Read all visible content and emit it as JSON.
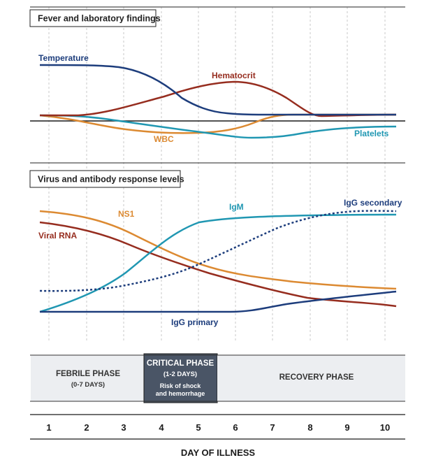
{
  "panels": {
    "fever": {
      "title": "Fever and laboratory findings"
    },
    "virus": {
      "title": "Virus and antibody response levels"
    }
  },
  "series_labels": {
    "temperature": "Temperature",
    "hematocrit": "Hematocrit",
    "wbc": "WBC",
    "platelets": "Platelets",
    "ns1": "NS1",
    "igm": "IgM",
    "igg_secondary": "IgG secondary",
    "viral_rna": "Viral RNA",
    "igg_primary": "IgG primary"
  },
  "phases": {
    "febrile": {
      "title": "FEBRILE PHASE",
      "sub": "(0-7 DAYS)"
    },
    "critical": {
      "title": "CRITICAL PHASE",
      "sub": "(1-2 DAYS)",
      "note1": "Risk of shock",
      "note2": "and hemorrhage"
    },
    "recovery": {
      "title": "RECOVERY PHASE"
    }
  },
  "days": [
    "1",
    "2",
    "3",
    "4",
    "5",
    "6",
    "7",
    "8",
    "9",
    "10"
  ],
  "axis_title": "DAY OF ILLNESS",
  "colors": {
    "navy": "#1d3d7c",
    "red": "#962d1f",
    "orange": "#dc8a32",
    "teal": "#2097b2",
    "critical_bg": "#4a5566",
    "phase_bg": "#eceef1"
  }
}
